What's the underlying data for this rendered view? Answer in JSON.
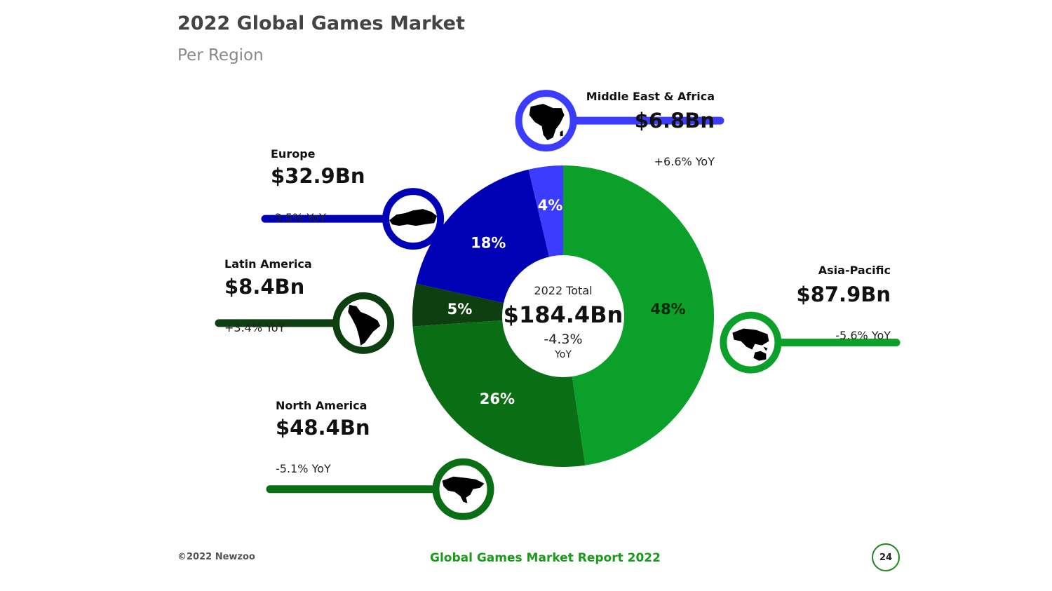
{
  "header": {
    "title": "2022 Global Games Market",
    "subtitle": "Per Region"
  },
  "footer": {
    "copyright": "©2022 Newzoo",
    "report_title": "Global Games Market Report 2022",
    "page_number": "24"
  },
  "chart_data": {
    "type": "pie",
    "center": {
      "label": "2022 Total",
      "value": "$184.4Bn",
      "change": "-4.3%",
      "change_unit": "YoY"
    },
    "slices": [
      {
        "name": "Asia-Pacific",
        "value": 87.9,
        "pct_label": "48%",
        "amount": "$87.9Bn",
        "yoy": "-5.6% YoY",
        "color": "#0aa02a",
        "icon": "asia-pacific-map-icon"
      },
      {
        "name": "North America",
        "value": 48.4,
        "pct_label": "26%",
        "amount": "$48.4Bn",
        "yoy": "-5.1% YoY",
        "color": "#0a6e14",
        "icon": "north-america-map-icon"
      },
      {
        "name": "Latin America",
        "value": 8.4,
        "pct_label": "5%",
        "amount": "$8.4Bn",
        "yoy": "+3.4% YoY",
        "color": "#0d3f10",
        "icon": "south-america-map-icon"
      },
      {
        "name": "Europe",
        "value": 32.9,
        "pct_label": "18%",
        "amount": "$32.9Bn",
        "yoy": "-3.5% YoY",
        "color": "#0000b4",
        "icon": "europe-map-icon"
      },
      {
        "name": "Middle East & Africa",
        "value": 6.8,
        "pct_label": "4%",
        "amount": "$6.8Bn",
        "yoy": "+6.6% YoY",
        "color": "#3c3cff",
        "icon": "africa-map-icon"
      }
    ]
  }
}
